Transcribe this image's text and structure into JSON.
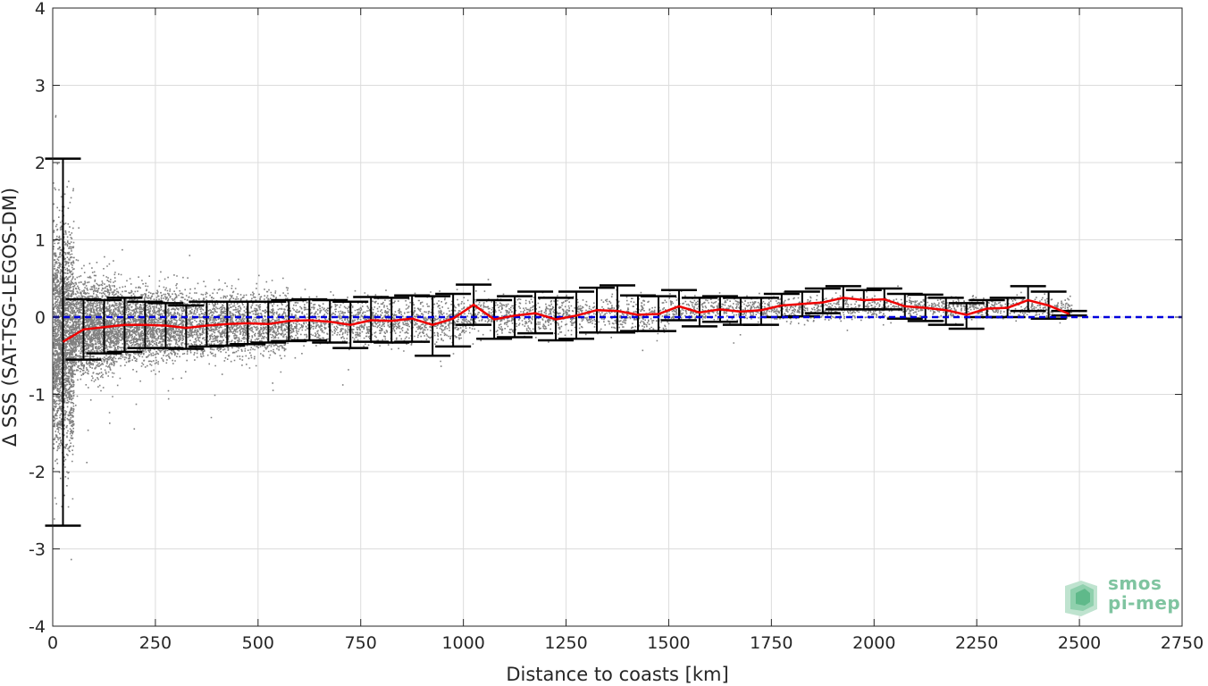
{
  "chart_data": {
    "type": "scatter",
    "xlabel": "Distance to coasts [km]",
    "ylabel": "Δ SSS (SAT-TSG-LEGOS-DM)",
    "xlim": [
      0,
      2750
    ],
    "ylim": [
      -4,
      4
    ],
    "xticks": [
      0,
      250,
      500,
      750,
      1000,
      1250,
      1500,
      1750,
      2000,
      2250,
      2500,
      2750
    ],
    "yticks": [
      -4,
      -3,
      -2,
      -1,
      0,
      1,
      2,
      3,
      4
    ],
    "grid": true,
    "colors": {
      "scatter": "#808080",
      "mean_line": "#ee0000",
      "errorbar": "#000000",
      "zero_line": "#0000dd",
      "logo": "#7fc4a0"
    },
    "zero_reference": 0,
    "series": [
      {
        "kind": "mean",
        "x": [
          25,
          75,
          125,
          175,
          225,
          275,
          325,
          375,
          425,
          475,
          525,
          575,
          625,
          675,
          725,
          775,
          825,
          875,
          925,
          975,
          1025,
          1075,
          1125,
          1175,
          1225,
          1275,
          1325,
          1375,
          1425,
          1475,
          1525,
          1575,
          1625,
          1675,
          1725,
          1775,
          1825,
          1875,
          1925,
          1975,
          2025,
          2075,
          2125,
          2175,
          2225,
          2275,
          2325,
          2375,
          2425,
          2475
        ],
        "y": [
          -0.32,
          -0.16,
          -0.13,
          -0.1,
          -0.1,
          -0.11,
          -0.14,
          -0.11,
          -0.09,
          -0.08,
          -0.09,
          -0.05,
          -0.04,
          -0.06,
          -0.1,
          -0.04,
          -0.05,
          -0.02,
          -0.1,
          -0.02,
          0.16,
          -0.03,
          0.02,
          0.05,
          -0.03,
          0.02,
          0.09,
          0.08,
          0.03,
          0.04,
          0.14,
          0.06,
          0.1,
          0.07,
          0.09,
          0.15,
          0.17,
          0.19,
          0.25,
          0.22,
          0.23,
          0.14,
          0.12,
          0.09,
          0.03,
          0.11,
          0.12,
          0.22,
          0.15,
          0.04
        ],
        "err_low": [
          -2.7,
          -0.55,
          -0.47,
          -0.45,
          -0.4,
          -0.4,
          -0.41,
          -0.38,
          -0.37,
          -0.35,
          -0.33,
          -0.31,
          -0.3,
          -0.33,
          -0.4,
          -0.32,
          -0.33,
          -0.32,
          -0.5,
          -0.38,
          -0.1,
          -0.28,
          -0.26,
          -0.21,
          -0.3,
          -0.28,
          -0.2,
          -0.2,
          -0.18,
          -0.18,
          -0.04,
          -0.12,
          -0.06,
          -0.1,
          -0.1,
          0,
          0.01,
          0.05,
          0.1,
          0.1,
          0.1,
          -0.02,
          -0.05,
          -0.1,
          -0.15,
          0,
          0,
          0.08,
          -0.02,
          0.02
        ],
        "err_high": [
          2.05,
          0.23,
          0.22,
          0.25,
          0.2,
          0.18,
          0.15,
          0.2,
          0.2,
          0.2,
          0.2,
          0.22,
          0.23,
          0.22,
          0.2,
          0.26,
          0.25,
          0.28,
          0.27,
          0.3,
          0.42,
          0.22,
          0.27,
          0.33,
          0.25,
          0.33,
          0.38,
          0.41,
          0.28,
          0.27,
          0.35,
          0.25,
          0.27,
          0.25,
          0.25,
          0.3,
          0.33,
          0.37,
          0.4,
          0.35,
          0.37,
          0.3,
          0.29,
          0.25,
          0.18,
          0.22,
          0.25,
          0.4,
          0.33,
          0.08
        ]
      }
    ],
    "scatter_bands": [
      {
        "x0": 0,
        "x1": 50,
        "center": -0.3,
        "spread": 1.25,
        "count": 2200
      },
      {
        "x0": 50,
        "x1": 150,
        "center": -0.12,
        "spread": 0.55,
        "count": 4000
      },
      {
        "x0": 150,
        "x1": 300,
        "center": -0.1,
        "spread": 0.42,
        "count": 4500
      },
      {
        "x0": 300,
        "x1": 570,
        "center": -0.08,
        "spread": 0.38,
        "count": 4500
      },
      {
        "x0": 570,
        "x1": 1000,
        "center": -0.04,
        "spread": 0.26,
        "count": 1300
      },
      {
        "x0": 1000,
        "x1": 1500,
        "center": 0.03,
        "spread": 0.2,
        "count": 1000
      },
      {
        "x0": 1500,
        "x1": 2000,
        "center": 0.12,
        "spread": 0.14,
        "count": 850
      },
      {
        "x0": 2000,
        "x1": 2480,
        "center": 0.13,
        "spread": 0.12,
        "count": 650
      }
    ],
    "logo_text": [
      "smos",
      "pi-mep"
    ]
  }
}
